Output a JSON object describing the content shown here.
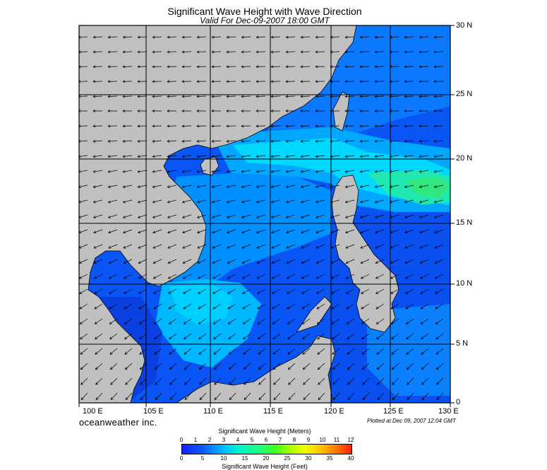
{
  "title": "Significant Wave Height with Wave Direction",
  "subtitle": "Valid For Dec-09-2007 18:00 GMT",
  "brand": "oceanweather inc.",
  "plotted": "Plotted at Dec 09, 2007 12:04 GMT",
  "lat_labels": [
    "30 N",
    "25 N",
    "20 N",
    "15 N",
    "10 N",
    "5 N",
    "0"
  ],
  "lon_labels": [
    "100 E",
    "105 E",
    "110 E",
    "115 E",
    "120 E",
    "125 E",
    "130 E"
  ],
  "legend": {
    "meters_title": "Significant Wave Height (Meters)",
    "meters_ticks": [
      "0",
      "1",
      "2",
      "3",
      "4",
      "5",
      "6",
      "7",
      "8",
      "9",
      "10",
      "11",
      "12"
    ],
    "feet_title": "Significant Wave Height (Feet)",
    "feet_ticks": [
      "0",
      "5",
      "10",
      "15",
      "20",
      "25",
      "30",
      "35",
      "40"
    ]
  },
  "colors": {
    "land": "#c0c0c0",
    "deep_blue": "#0820f0",
    "mid_blue": "#0070ff",
    "cyan": "#00d8ff",
    "aqua": "#00f0e0",
    "green": "#20e890"
  }
}
